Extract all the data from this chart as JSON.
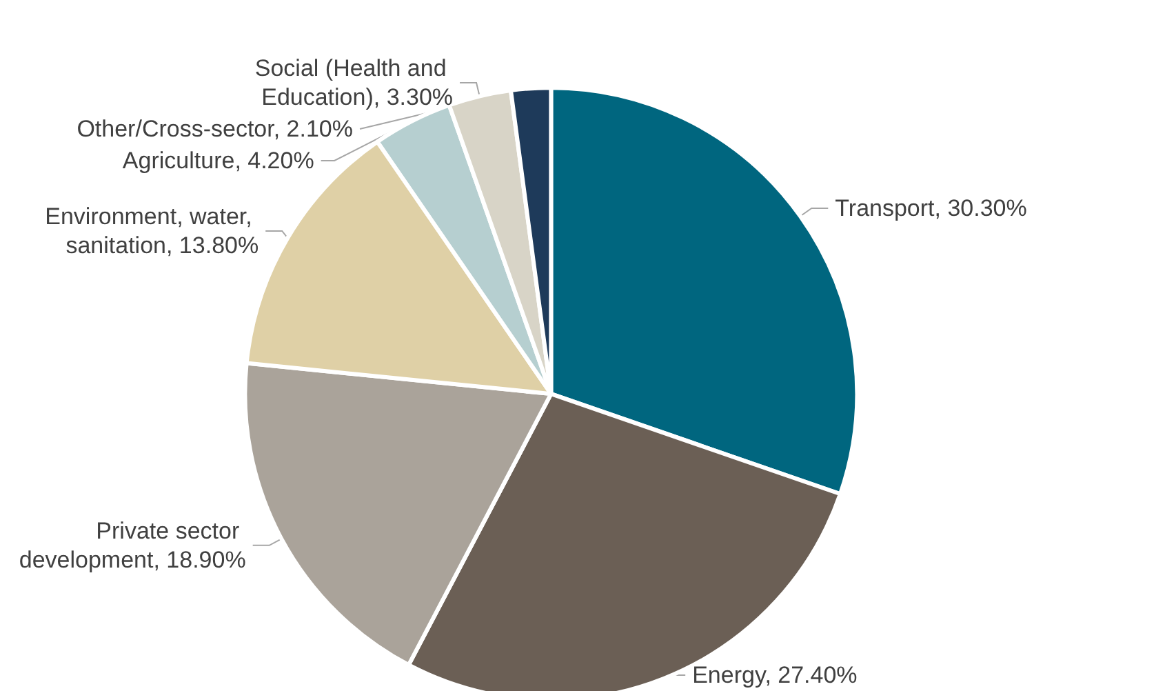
{
  "chart_data": {
    "type": "pie",
    "categories": [
      "Transport",
      "Energy",
      "Private sector development",
      "Environment, water, sanitation",
      "Agriculture",
      "Social (Health and Education)",
      "Other/Cross-sector"
    ],
    "values": [
      30.3,
      27.4,
      18.9,
      13.8,
      4.2,
      3.3,
      2.1
    ],
    "value_labels": [
      "30.30%",
      "27.40%",
      "18.90%",
      "13.80%",
      "4.20%",
      "3.30%",
      "2.10%"
    ],
    "colors": [
      "#00667f",
      "#6b5f55",
      "#aaa39a",
      "#dfd0a6",
      "#b6cfd0",
      "#d8d4c7",
      "#1e3a5a"
    ],
    "legend": false
  }
}
